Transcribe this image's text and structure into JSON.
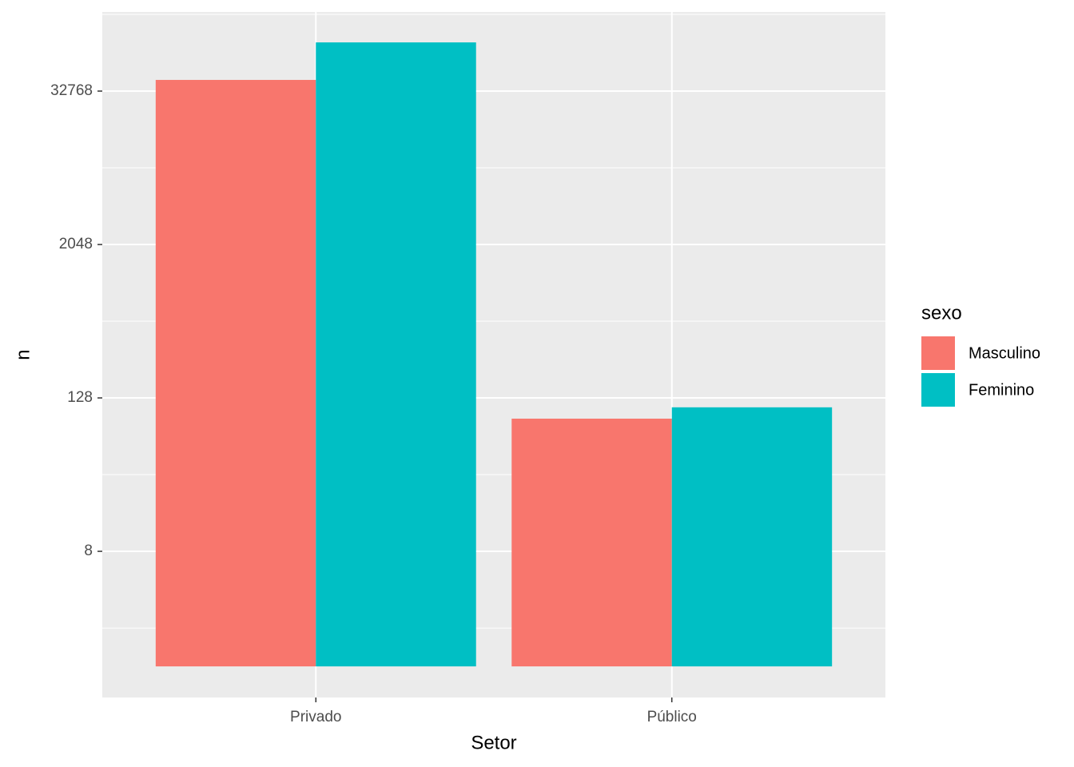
{
  "chart_data": {
    "type": "bar",
    "x_axis_title": "Setor",
    "y_axis_title": "n",
    "legend_title": "sexo",
    "categories": [
      "Privado",
      "Público"
    ],
    "series": [
      {
        "name": "Masculino",
        "color": "#f8766d",
        "values": [
          40100,
          88
        ]
      },
      {
        "name": "Feminino",
        "color": "#00bfc4",
        "values": [
          79000,
          108
        ]
      }
    ],
    "ylim": [
      0.57,
      136880
    ],
    "yticks": [
      8,
      128,
      2048,
      32768
    ],
    "yscale": "log2",
    "grid": true,
    "legend": "right"
  }
}
